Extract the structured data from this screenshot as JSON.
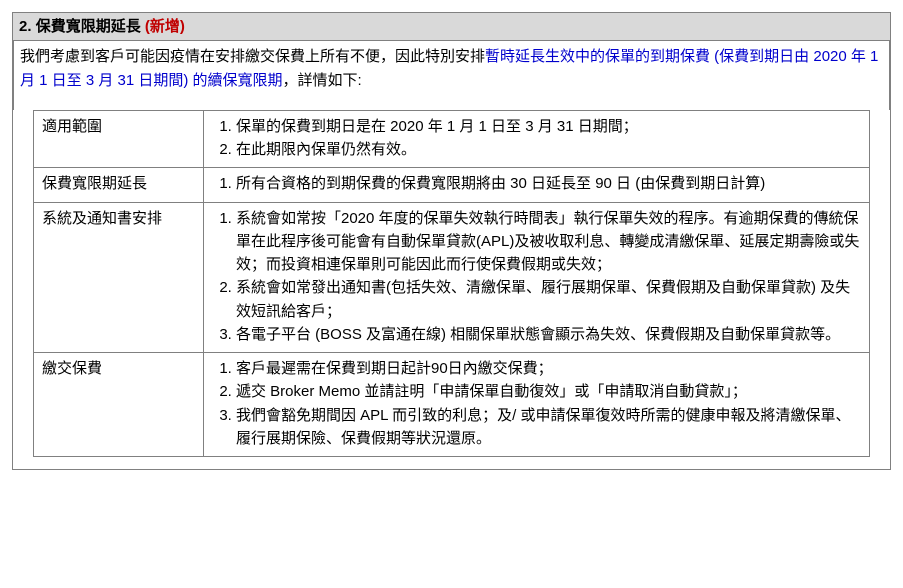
{
  "header": {
    "index": "2.",
    "title": "保費寬限期延長",
    "new_label": "(新增)"
  },
  "intro": {
    "pre": "我們考慮到客戶可能因疫情在安排繳交保費上所有不便，因此特別安排",
    "blue": "暫時延長生效中的保單的到期保費 (保費到期日由 2020 年 1 月 1 日至 3 月 31 日期間) 的續保寬限期",
    "post": "，詳情如下:"
  },
  "rows": [
    {
      "label": "適用範圍",
      "items": [
        "保單的保費到期日是在 2020 年 1 月 1 日至 3 月 31 日期間；",
        "在此期限內保單仍然有效。"
      ]
    },
    {
      "label": "保費寬限期延長",
      "items": [
        "所有合資格的到期保費的保費寬限期將由 30 日延長至 90 日 (由保費到期日計算)"
      ]
    },
    {
      "label": "系統及通知書安排",
      "items": [
        "系統會如常按「2020 年度的保單失效執行時間表」執行保單失效的程序。有逾期保費的傳統保單在此程序後可能會有自動保單貸款(APL)及被收取利息、轉變成清繳保單、延展定期壽險或失效；而投資相連保單則可能因此而行使保費假期或失效；",
        "系統會如常發出通知書(包括失效、清繳保單、履行展期保單、保費假期及自動保單貸款) 及失效短訊給客戶；",
        "各電子平台 (BOSS 及富通在線) 相關保單狀態會顯示為失效、保費假期及自動保單貸款等。"
      ]
    },
    {
      "label": "繳交保費",
      "items": [
        "客戶最遲需在保費到期日起計90日內繳交保費；",
        "遞交 Broker Memo 並請註明「申請保單自動復效」或「申請取消自動貸款」；",
        "我們會豁免期間因 APL 而引致的利息；及/ 或申請保單復效時所需的健康申報及將清繳保單、履行展期保險、保費假期等狀況還原。"
      ]
    }
  ]
}
